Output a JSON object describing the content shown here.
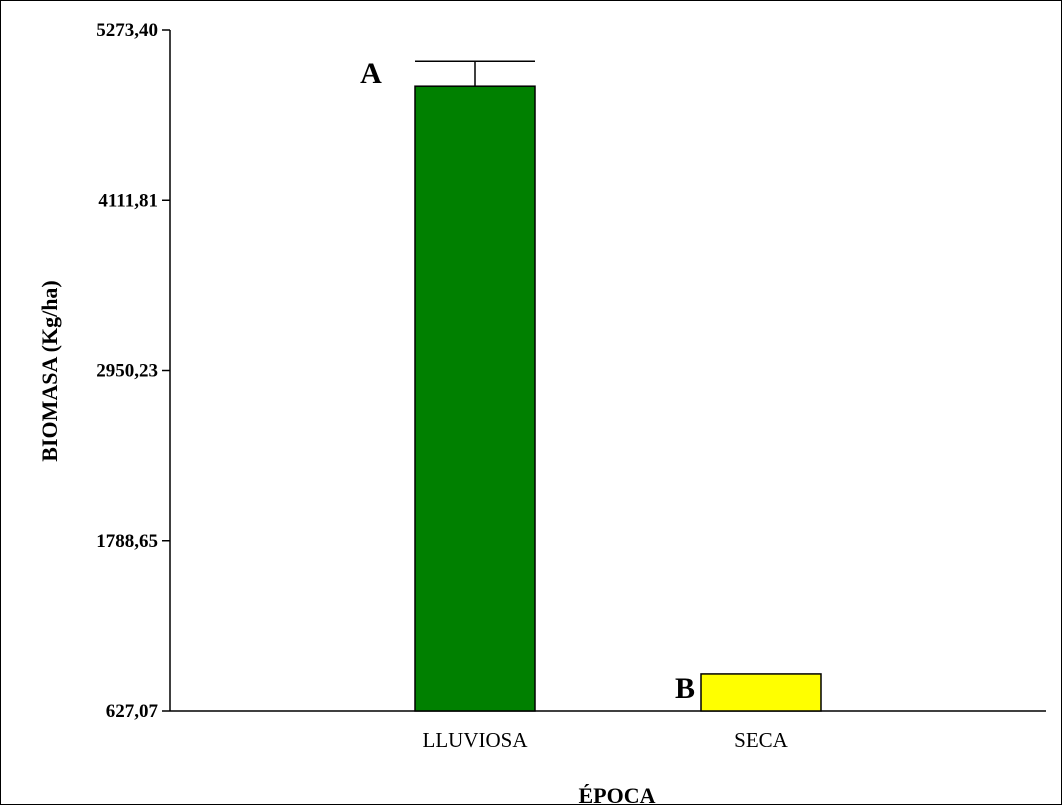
{
  "chart_data": {
    "type": "bar",
    "xlabel": "ÉPOCA",
    "ylabel": "BIOMASA (Kg/ha)",
    "categories": [
      "LLUVIOSA",
      "SECA"
    ],
    "values": [
      4890,
      880
    ],
    "error_upper": [
      5060,
      null
    ],
    "significance_labels": [
      "A",
      "B"
    ],
    "bar_colors": [
      "#008000",
      "#ffff00"
    ],
    "ylim": [
      627.07,
      5273.4
    ],
    "yticks": [
      627.07,
      1788.65,
      2950.23,
      4111.81,
      5273.4
    ],
    "ytick_labels": [
      "627,07",
      "1788,65",
      "2950,23",
      "4111,81",
      "5273,40"
    ],
    "grid": false,
    "legend": "none"
  }
}
